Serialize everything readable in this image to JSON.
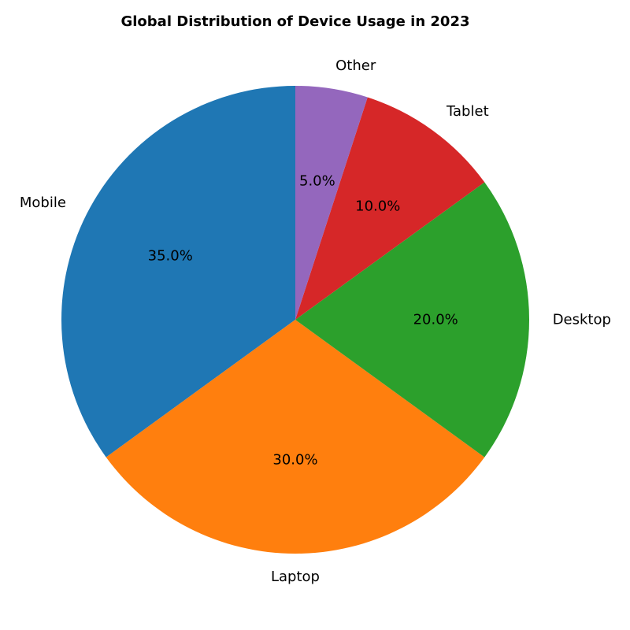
{
  "chart_data": {
    "type": "pie",
    "title": "Global Distribution of Device Usage in 2023",
    "categories": [
      "Mobile",
      "Laptop",
      "Desktop",
      "Tablet",
      "Other"
    ],
    "values": [
      35.0,
      30.0,
      20.0,
      10.0,
      5.0
    ],
    "percent_labels": [
      "35.0%",
      "30.0%",
      "20.0%",
      "10.0%",
      "5.0%"
    ],
    "colors": [
      "#1f77b4",
      "#ff7f0e",
      "#2ca02c",
      "#d62728",
      "#9467bd"
    ],
    "start_angle_deg": 90,
    "direction": "counterclockwise"
  }
}
